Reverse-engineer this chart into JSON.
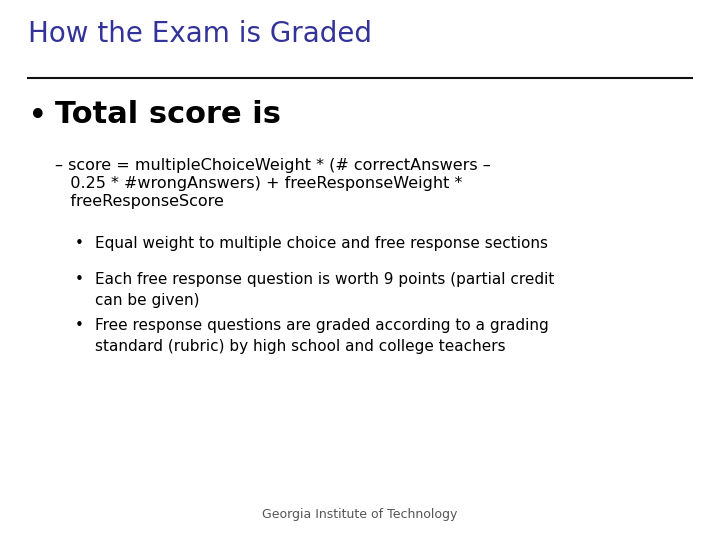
{
  "title": "How the Exam is Graded",
  "title_color": "#333399",
  "background_color": "#FFFFFF",
  "line_color": "#111111",
  "text_color": "#000000",
  "footer_color": "#555555",
  "title_fontsize": 20,
  "bullet1_fontsize": 22,
  "sub_bullet_fontsize": 11.5,
  "sub_sub_bullet_fontsize": 11,
  "footer_fontsize": 9,
  "footer": "Georgia Institute of Technology",
  "bullet1": "Total score is",
  "sub_bullet_line1": "– score = multipleChoiceWeight * (# correctAnswers –",
  "sub_bullet_line2": "   0.25 * #wrongAnswers) + freeResponseWeight *",
  "sub_bullet_line3": "   freeResponseScore",
  "sub_bullets": [
    "Equal weight to multiple choice and free response sections",
    "Each free response question is worth 9 points (partial credit\ncan be given)",
    "Free response questions are graded according to a grading\nstandard (rubric) by high school and college teachers"
  ]
}
